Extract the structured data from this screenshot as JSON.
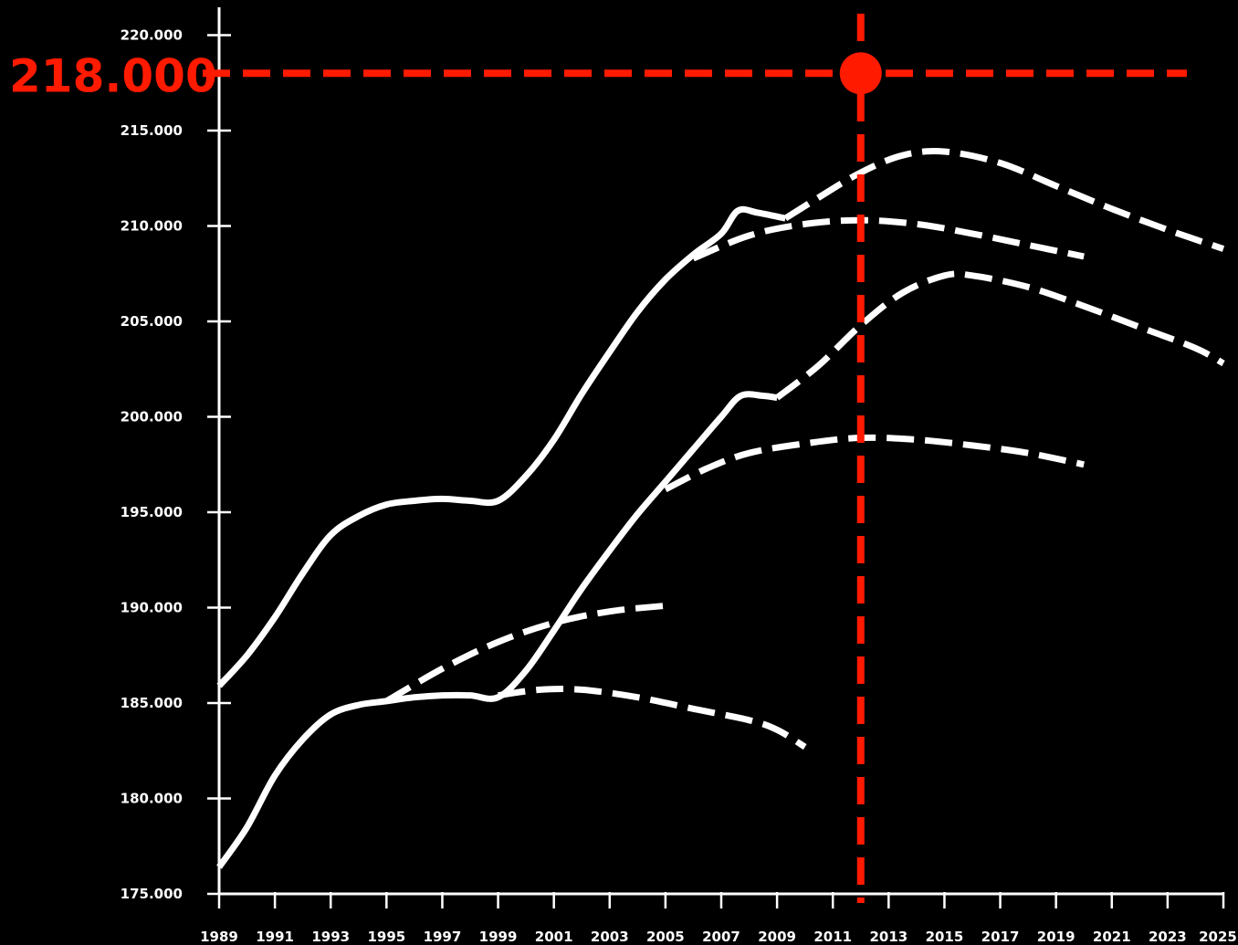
{
  "chart_data": {
    "type": "line",
    "title": "",
    "xlabel": "",
    "ylabel": "",
    "xlim": [
      1989,
      2025
    ],
    "ylim": [
      175000,
      221000
    ],
    "x_ticks": [
      "1989",
      "1991",
      "1993",
      "1995",
      "1997",
      "1999",
      "2001",
      "2003",
      "2005",
      "2007",
      "2009",
      "2011",
      "2013",
      "2015",
      "2017",
      "2019",
      "2021",
      "2023",
      "2025"
    ],
    "y_ticks": [
      "175.000",
      "180.000",
      "185.000",
      "190.000",
      "195.000",
      "200.000",
      "205.000",
      "210.000",
      "215.000",
      "220.000"
    ],
    "grid": false,
    "legend": "none",
    "colors": {
      "background": "#000000",
      "series": "#ffffff",
      "marker": "#ff1a00"
    },
    "series": [
      {
        "style": "solid",
        "points": [
          [
            1989,
            185.9
          ],
          [
            1990,
            187.5
          ],
          [
            1991,
            189.5
          ],
          [
            1992,
            191.8
          ],
          [
            1993,
            193.8
          ],
          [
            1994,
            194.8
          ],
          [
            1995,
            195.4
          ],
          [
            1996,
            195.6
          ],
          [
            1997,
            195.7
          ],
          [
            1998,
            195.6
          ],
          [
            1999,
            195.6
          ],
          [
            2000,
            196.9
          ],
          [
            2001,
            198.8
          ],
          [
            2002,
            201.2
          ],
          [
            2003,
            203.4
          ],
          [
            2004,
            205.5
          ],
          [
            2005,
            207.2
          ],
          [
            2006,
            208.5
          ],
          [
            2007,
            209.6
          ],
          [
            2007.6,
            210.8
          ],
          [
            2008.3,
            210.7
          ],
          [
            2009.3,
            210.4
          ]
        ]
      },
      {
        "style": "dashed",
        "points": [
          [
            2009.3,
            210.4
          ],
          [
            2010.5,
            211.5
          ],
          [
            2012,
            212.8
          ],
          [
            2013.5,
            213.7
          ],
          [
            2015,
            213.9
          ],
          [
            2017,
            213.3
          ],
          [
            2019,
            212.1
          ],
          [
            2021,
            210.9
          ],
          [
            2023,
            209.8
          ],
          [
            2025,
            208.8
          ]
        ]
      },
      {
        "style": "dashed",
        "points": [
          [
            2006,
            208.3
          ],
          [
            2008,
            209.5
          ],
          [
            2010,
            210.1
          ],
          [
            2012,
            210.3
          ],
          [
            2014,
            210.1
          ],
          [
            2016,
            209.6
          ],
          [
            2018,
            209.0
          ],
          [
            2020,
            208.4
          ]
        ]
      },
      {
        "style": "solid",
        "points": [
          [
            1989,
            176.4
          ],
          [
            1990,
            178.5
          ],
          [
            1991,
            181.2
          ],
          [
            1992,
            183.1
          ],
          [
            1993,
            184.4
          ],
          [
            1994,
            184.9
          ],
          [
            1995,
            185.1
          ],
          [
            1996,
            185.3
          ],
          [
            1997,
            185.4
          ],
          [
            1998,
            185.4
          ],
          [
            1999,
            185.3
          ],
          [
            2000,
            186.7
          ],
          [
            2001,
            188.8
          ],
          [
            2002,
            191.0
          ],
          [
            2003,
            193.0
          ],
          [
            2004,
            194.9
          ],
          [
            2005,
            196.6
          ],
          [
            2006,
            198.3
          ],
          [
            2007,
            200.0
          ],
          [
            2007.7,
            201.1
          ],
          [
            2008.5,
            201.1
          ],
          [
            2009,
            201.0
          ]
        ]
      },
      {
        "style": "dashed",
        "points": [
          [
            2009,
            201.0
          ],
          [
            2010.5,
            202.7
          ],
          [
            2012,
            204.8
          ],
          [
            2013.5,
            206.5
          ],
          [
            2015,
            207.4
          ],
          [
            2016,
            207.4
          ],
          [
            2018,
            206.8
          ],
          [
            2020,
            205.8
          ],
          [
            2022,
            204.7
          ],
          [
            2024,
            203.6
          ],
          [
            2025,
            202.8
          ]
        ]
      },
      {
        "style": "dashed",
        "points": [
          [
            2005,
            196.2
          ],
          [
            2006.5,
            197.3
          ],
          [
            2008,
            198.1
          ],
          [
            2010,
            198.6
          ],
          [
            2012,
            198.9
          ],
          [
            2014,
            198.8
          ],
          [
            2016,
            198.5
          ],
          [
            2018,
            198.1
          ],
          [
            2020,
            197.5
          ]
        ]
      },
      {
        "style": "dashed",
        "points": [
          [
            1995,
            185.1
          ],
          [
            1997,
            186.8
          ],
          [
            1999,
            188.2
          ],
          [
            2001,
            189.2
          ],
          [
            2003,
            189.8
          ],
          [
            2005,
            190.1
          ]
        ]
      },
      {
        "style": "dashed",
        "points": [
          [
            1999,
            185.4
          ],
          [
            2000.5,
            185.7
          ],
          [
            2002,
            185.7
          ],
          [
            2004,
            185.3
          ],
          [
            2006,
            184.7
          ],
          [
            2008,
            184.1
          ],
          [
            2009,
            183.6
          ],
          [
            2010,
            182.7
          ]
        ]
      }
    ],
    "marker": {
      "x": 2012,
      "y": 218000,
      "label": "218.000",
      "style": "dashed crosshair"
    }
  }
}
